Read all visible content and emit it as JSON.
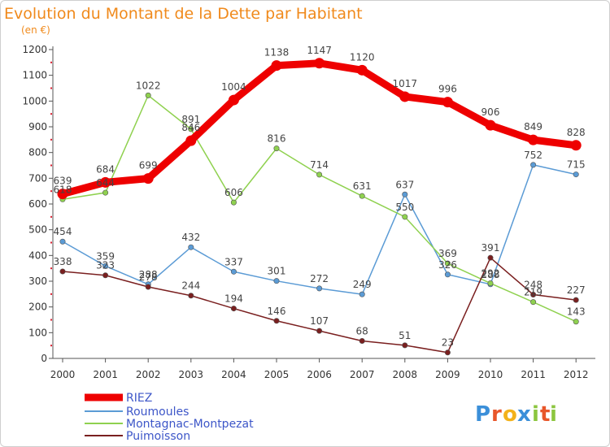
{
  "chart_data": {
    "type": "line",
    "title": "Evolution du Montant de la Dette par Habitant",
    "subtitle": "(en €)",
    "x": [
      "2000",
      "2001",
      "2002",
      "2003",
      "2004",
      "2005",
      "2006",
      "2007",
      "2008",
      "2009",
      "2010",
      "2011",
      "2012"
    ],
    "ylim": [
      0,
      1200
    ],
    "yticks": [
      0,
      100,
      200,
      300,
      400,
      500,
      600,
      700,
      800,
      900,
      1000,
      1100,
      1200
    ],
    "grid": false,
    "legend_position": "bottom-left",
    "series": [
      {
        "name": "RIEZ",
        "color": "#ee0000",
        "values": [
          639,
          684,
          699,
          846,
          1004,
          1138,
          1147,
          1120,
          1017,
          996,
          906,
          849,
          828
        ]
      },
      {
        "name": "Roumoules",
        "color": "#5b9bd5",
        "values": [
          454,
          359,
          288,
          432,
          337,
          301,
          272,
          249,
          637,
          326,
          288,
          752,
          715
        ]
      },
      {
        "name": "Montagnac-Montpezat",
        "color": "#8fd14f",
        "values": [
          618,
          644,
          1022,
          891,
          606,
          816,
          714,
          631,
          550,
          369,
          292,
          219,
          143
        ]
      },
      {
        "name": "Puimoisson",
        "color": "#7a1f1f",
        "values": [
          338,
          323,
          278,
          244,
          194,
          146,
          107,
          68,
          51,
          23,
          391,
          248,
          227
        ]
      }
    ]
  },
  "logo": {
    "text": "Proxiti",
    "letters": [
      "P",
      "r",
      "o",
      "x",
      "i",
      "t",
      "i"
    ],
    "colors": [
      "#3b8fd9",
      "#e8562a",
      "#f3b21b",
      "#3b8fd9",
      "#8cc63f",
      "#e8562a",
      "#8cc63f"
    ]
  }
}
